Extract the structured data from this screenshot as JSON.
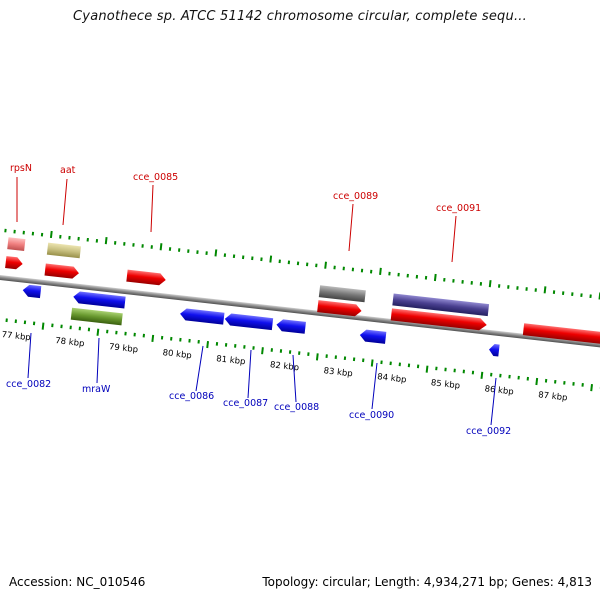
{
  "title": "Cyanothece sp. ATCC 51142 chromosome circular, complete sequ...",
  "accession_label": "Accession: NC_010546",
  "summary": "Topology: circular; Length: 4,934,271 bp; Genes: 4,813",
  "colors": {
    "red": "#ee0000",
    "blue": "#0000ee",
    "tick": "#008800",
    "backbone": "#888888",
    "label_red": "#cc0000",
    "label_blue": "#0000bb",
    "pink": "#f08080",
    "olive": "#c8c080",
    "green_bar": "#6a9a30",
    "gray_bar": "#777777",
    "navy_bar": "#4a4090"
  },
  "scale_labels": [
    "77 kbp",
    "78 kbp",
    "79 kbp",
    "80 kbp",
    "81 kbp",
    "82 kbp",
    "83 kbp",
    "84 kbp",
    "85 kbp",
    "86 kbp",
    "87 kbp"
  ],
  "gene_labels_top": [
    "rpsN",
    "aat",
    "cce_0085",
    "cce_0089",
    "cce_0091"
  ],
  "gene_labels_bottom": [
    "cce_0082",
    "mraW",
    "cce_0086",
    "cce_0087",
    "cce_0088",
    "cce_0090",
    "cce_0092"
  ]
}
